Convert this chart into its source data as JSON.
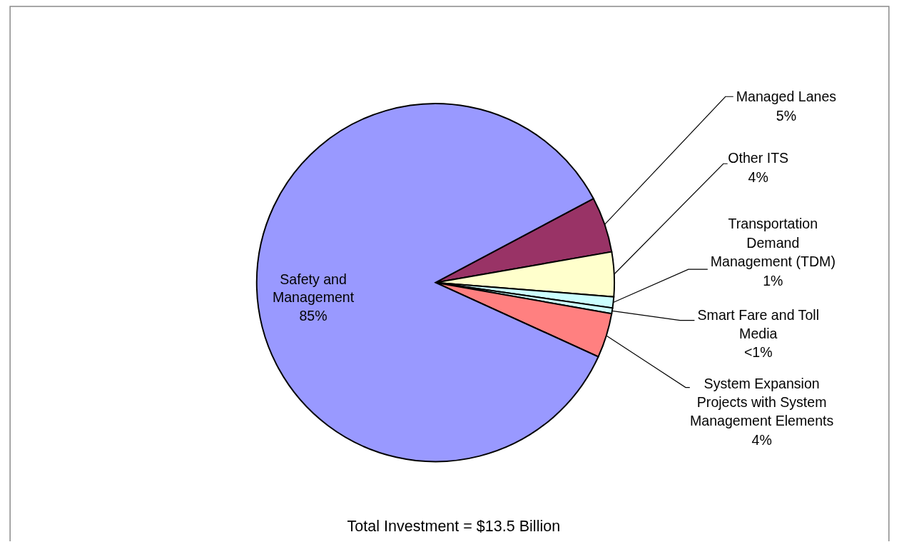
{
  "chart_data": {
    "type": "pie",
    "title": "Total Investment = $13.5 Billion",
    "categories": [
      "Managed Lanes",
      "Other ITS",
      "Transportation Demand Management (TDM)",
      "Smart Fare and Toll Media",
      "System Expansion Projects with System Management Elements",
      "Safety and Management"
    ],
    "values": [
      5,
      4,
      1,
      0.5,
      4,
      85
    ],
    "value_labels": [
      "5%",
      "4%",
      "1%",
      "<1%",
      "4%",
      "85%"
    ],
    "colors": [
      "#993366",
      "#ffffcc",
      "#ccffff",
      "#ccffff",
      "#ff8080",
      "#9999ff"
    ]
  }
}
